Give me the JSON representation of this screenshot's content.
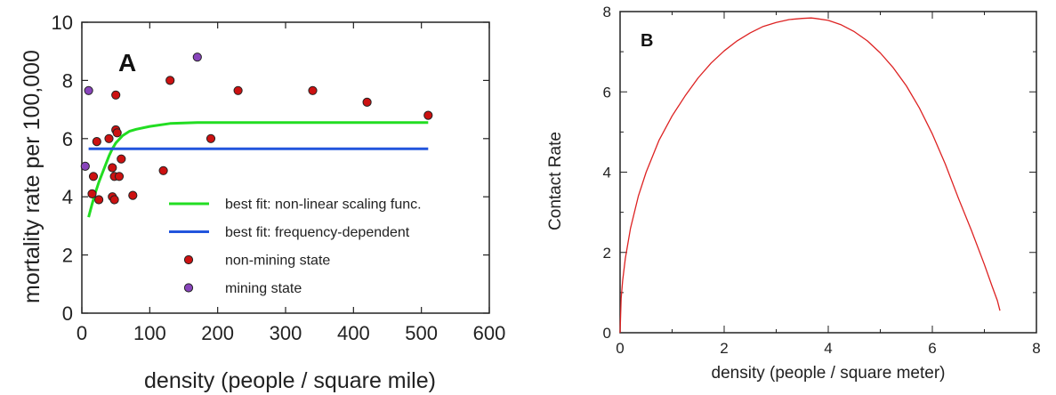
{
  "chart_data": [
    {
      "type": "scatter",
      "panel_label": "A",
      "xlabel": "density (people / square mile)",
      "ylabel": "mortality rate per 100,000",
      "xlim": [
        0,
        600
      ],
      "ylim": [
        0,
        10
      ],
      "xticks": [
        "0",
        "100",
        "200",
        "300",
        "400",
        "500",
        "600"
      ],
      "yticks": [
        "0",
        "2",
        "4",
        "6",
        "8",
        "10"
      ],
      "legend_position": "bottom-right",
      "legend": [
        {
          "label": "best fit: non-linear scaling func.",
          "kind": "line",
          "color": "#22dd22"
        },
        {
          "label": "best fit: frequency-dependent",
          "kind": "line",
          "color": "#2255dd"
        },
        {
          "label": "non-mining state",
          "kind": "point",
          "color": "#cc1111"
        },
        {
          "label": "mining state",
          "kind": "point",
          "color": "#8844bb"
        }
      ],
      "series": [
        {
          "name": "best fit: non-linear scaling func.",
          "type": "line",
          "color": "#22dd22",
          "x": [
            10,
            15,
            20,
            25,
            30,
            35,
            40,
            45,
            50,
            60,
            70,
            80,
            100,
            130,
            170,
            250,
            350,
            450,
            510
          ],
          "y": [
            3.3,
            3.75,
            4.15,
            4.5,
            4.8,
            5.1,
            5.4,
            5.65,
            5.85,
            6.1,
            6.25,
            6.32,
            6.42,
            6.52,
            6.55,
            6.55,
            6.55,
            6.55,
            6.55
          ]
        },
        {
          "name": "best fit: frequency-dependent",
          "type": "line",
          "color": "#2255dd",
          "x": [
            10,
            510
          ],
          "y": [
            5.65,
            5.65
          ]
        },
        {
          "name": "non-mining state",
          "type": "scatter",
          "color": "#cc1111",
          "x": [
            15,
            17,
            22,
            25,
            40,
            45,
            45,
            48,
            48,
            50,
            50,
            52,
            55,
            58,
            75,
            120,
            130,
            190,
            230,
            340,
            420,
            510
          ],
          "y": [
            4.1,
            4.7,
            5.9,
            3.9,
            6.0,
            4.0,
            5.0,
            4.7,
            3.9,
            7.5,
            6.3,
            6.2,
            4.7,
            5.3,
            4.05,
            4.9,
            8.0,
            6.0,
            7.65,
            7.65,
            7.25,
            6.8
          ]
        },
        {
          "name": "mining state",
          "type": "scatter",
          "color": "#8844bb",
          "x": [
            5,
            10,
            170
          ],
          "y": [
            5.05,
            7.65,
            8.8
          ]
        }
      ]
    },
    {
      "type": "line",
      "panel_label": "B",
      "xlabel": "density (people / square meter)",
      "ylabel": "Contact Rate",
      "xlim": [
        0,
        8
      ],
      "ylim": [
        0,
        8
      ],
      "xticks": [
        "0",
        "2",
        "4",
        "6",
        "8"
      ],
      "yticks": [
        "0",
        "2",
        "4",
        "6",
        "8"
      ],
      "series": [
        {
          "name": "",
          "type": "line",
          "color": "#dd2222",
          "x": [
            0,
            0.02,
            0.05,
            0.1,
            0.2,
            0.35,
            0.5,
            0.75,
            1.0,
            1.25,
            1.5,
            1.75,
            2.0,
            2.25,
            2.5,
            2.75,
            3.0,
            3.25,
            3.5,
            3.67,
            3.75,
            4.0,
            4.25,
            4.5,
            4.75,
            5.0,
            5.25,
            5.5,
            5.75,
            6.0,
            6.25,
            6.5,
            6.75,
            7.0,
            7.15,
            7.25,
            7.3
          ],
          "y": [
            0,
            0.85,
            1.3,
            1.85,
            2.6,
            3.4,
            4.0,
            4.8,
            5.4,
            5.9,
            6.35,
            6.72,
            7.02,
            7.27,
            7.47,
            7.63,
            7.73,
            7.8,
            7.83,
            7.84,
            7.83,
            7.78,
            7.67,
            7.5,
            7.27,
            6.97,
            6.6,
            6.15,
            5.6,
            4.95,
            4.2,
            3.35,
            2.55,
            1.7,
            1.15,
            0.8,
            0.55
          ]
        }
      ]
    }
  ]
}
